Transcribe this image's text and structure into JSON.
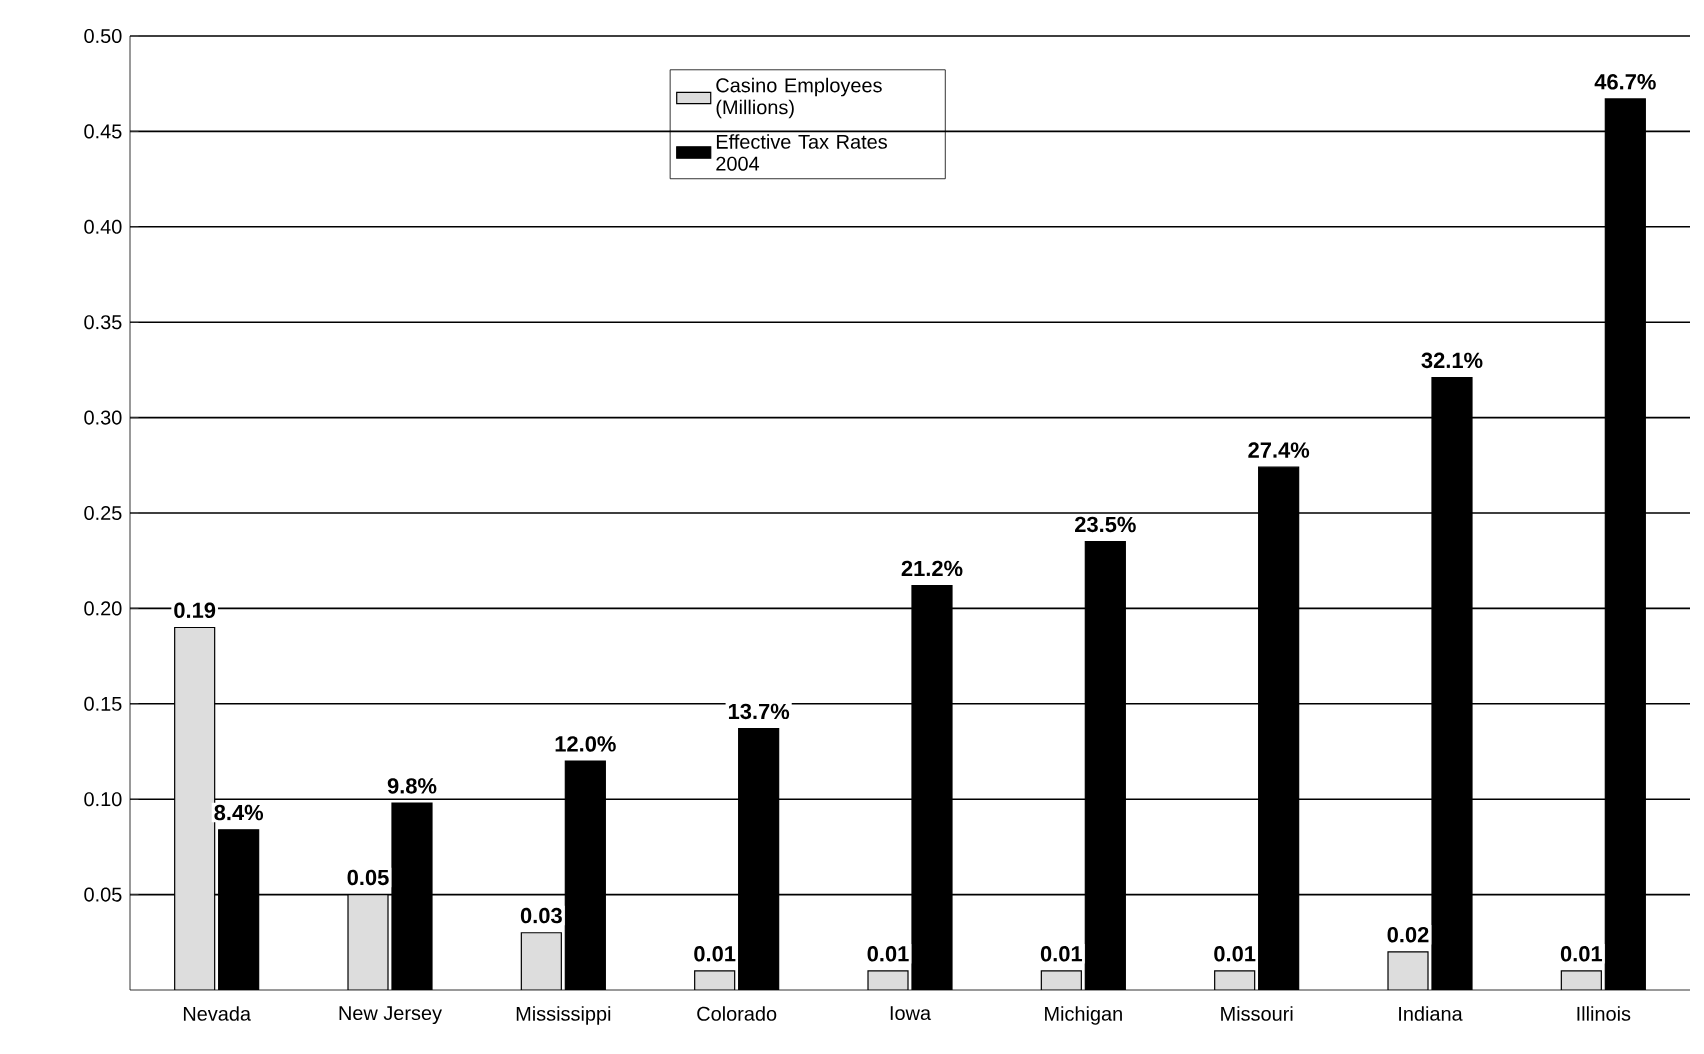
{
  "chart_data": {
    "type": "bar",
    "categories": [
      "Nevada",
      "New Jersey",
      "Mississippi",
      "Colorado",
      "Iowa",
      "Michigan",
      "Missouri",
      "Indiana",
      "Illinois"
    ],
    "series": [
      {
        "name": "Casino Employees (Millions)",
        "color": "#dddddd",
        "values": [
          0.19,
          0.05,
          0.03,
          0.01,
          0.01,
          0.01,
          0.01,
          0.02,
          0.01
        ],
        "value_labels": [
          "0.19",
          "0.05",
          "0.03",
          "0.01",
          "0.01",
          "0.01",
          "0.01",
          "0.02",
          "0.01"
        ]
      },
      {
        "name": "Effective Tax Rates 2004",
        "color": "#000000",
        "values": [
          0.084,
          0.098,
          0.12,
          0.137,
          0.212,
          0.235,
          0.274,
          0.321,
          0.467
        ],
        "value_labels": [
          "8.4%",
          "9.8%",
          "12.0%",
          "13.7%",
          "21.2%",
          "23.5%",
          "27.4%",
          "32.1%",
          "46.7%"
        ]
      }
    ],
    "ylim": [
      0,
      0.5
    ],
    "yticks": [
      {
        "value": 0.05,
        "label": "0.05"
      },
      {
        "value": 0.1,
        "label": "0.10"
      },
      {
        "value": 0.15,
        "label": "0.15"
      },
      {
        "value": 0.2,
        "label": "0.20"
      },
      {
        "value": 0.25,
        "label": "0.25"
      },
      {
        "value": 0.3,
        "label": "0.30"
      },
      {
        "value": 0.35,
        "label": "0.35"
      },
      {
        "value": 0.4,
        "label": "0.40"
      },
      {
        "value": 0.45,
        "label": "0.45"
      },
      {
        "value": 0.5,
        "label": "0.50"
      }
    ],
    "grid": "y",
    "legend": "top"
  }
}
